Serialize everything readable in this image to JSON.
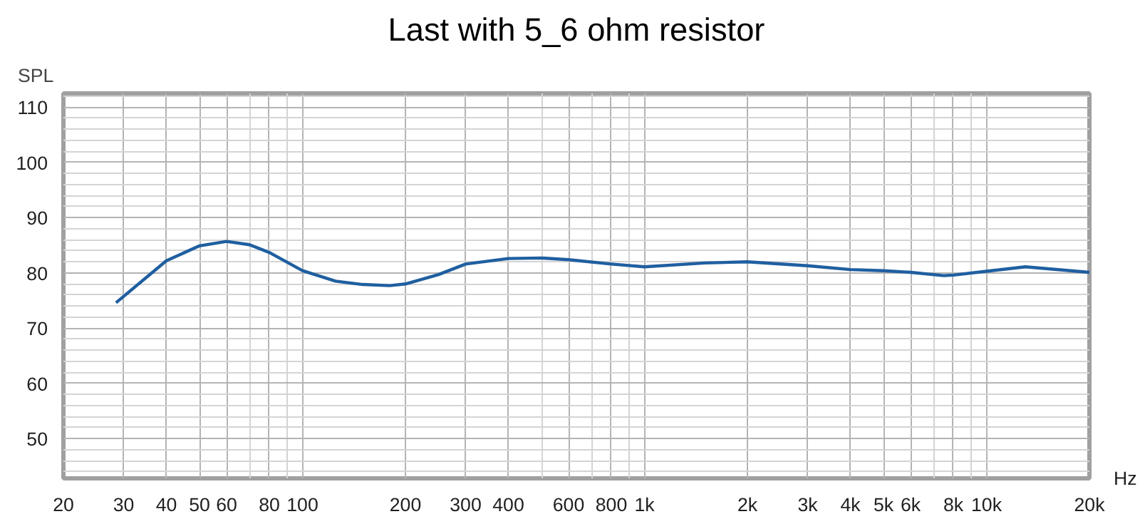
{
  "chart_data": {
    "type": "line",
    "title": "Last with 5_6 ohm resistor",
    "ylabel": "SPL",
    "log": "x",
    "grid": true,
    "marker": "none",
    "line_style": "solid",
    "xlim": [
      20,
      20000
    ],
    "ylim": [
      42.8,
      112.5
    ],
    "xticks": [
      20,
      30,
      40,
      50,
      60,
      80,
      100,
      200,
      300,
      400,
      600,
      800,
      {
        "value": 1000,
        "label": "1k"
      },
      {
        "value": 2000,
        "label": "2k"
      },
      {
        "value": 3000,
        "label": "3k"
      },
      {
        "value": 4000,
        "label": "4k"
      },
      {
        "value": 5000,
        "label": "5k"
      },
      {
        "value": 6000,
        "label": "6k"
      },
      {
        "value": 8000,
        "label": "8k"
      },
      {
        "value": 10000,
        "label": "10k"
      },
      {
        "value": 20000,
        "label": "20k"
      }
    ],
    "xlabel": "Hz",
    "yticks": [
      50,
      60,
      70,
      80,
      90,
      100,
      110
    ],
    "series": [
      {
        "color": "#1f5fa0",
        "x": [
          28.5,
          40,
          50,
          60,
          70,
          80,
          100,
          125,
          150,
          180,
          200,
          250,
          300,
          400,
          500,
          600,
          800,
          1000,
          1500,
          2000,
          3000,
          4000,
          5000,
          6000,
          7500,
          8000,
          10000,
          13000,
          20000
        ],
        "values": [
          74.6,
          82.2,
          84.9,
          85.7,
          85.1,
          83.7,
          80.4,
          78.5,
          77.9,
          77.7,
          78.0,
          79.7,
          81.6,
          82.6,
          82.7,
          82.4,
          81.6,
          81.1,
          81.8,
          82.0,
          81.3,
          80.6,
          80.4,
          80.1,
          79.5,
          79.6,
          80.3,
          81.1,
          80.1
        ]
      }
    ]
  }
}
